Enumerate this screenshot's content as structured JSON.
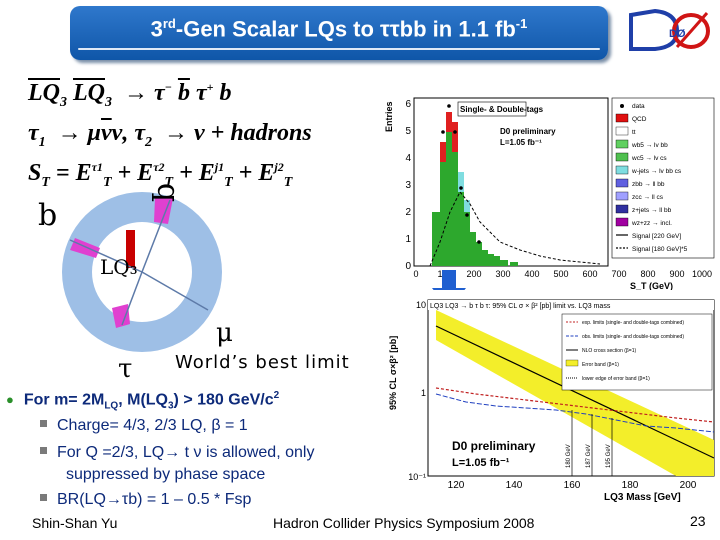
{
  "title": {
    "main": "3",
    "sup1": "rd",
    "mid": "-Gen Scalar LQs to ττbb in 1.1 fb",
    "sup2": "-1"
  },
  "logo": {
    "text": "DØ"
  },
  "equations": {
    "eq1": "LQ₃ LQ₃ → τ⁻ b τ⁺ b",
    "eq2": "τ₁ → μνν, τ₂ → ν + hadrons",
    "eq3": "S_T = E_T^τ1 + E_T^τ2 + E_T^j1 + E_T^j2"
  },
  "diagram": {
    "b": "b",
    "q": "q",
    "lq3": "LQ₃",
    "tau": "τ",
    "mu": "μ"
  },
  "world_best": "World’s best limit",
  "plot1": {
    "ylabel": "Entries",
    "xlabel": "S_T (GeV)",
    "box_title": "Single- & Double-tags",
    "prelim": "D0 preliminary",
    "lumi": "L=1.05 fb⁻¹",
    "x_ticks": [
      "0",
      "100",
      "200",
      "300",
      "400",
      "500",
      "600",
      "700",
      "800",
      "900",
      "1000"
    ],
    "y_ticks": [
      "0",
      "1",
      "2",
      "3",
      "4",
      "5",
      "6"
    ],
    "legend": [
      "data",
      "QCD",
      "tt",
      "wb5 → lv bb",
      "wc5 → lv cs",
      "w-jets → lv bb cs",
      "zbb → ll bb",
      "zcc → ll cs",
      "z+jets → ll bb",
      "wz+zz → incl.",
      "Signal [220 GeV]",
      "Signal [180 GeV]*5"
    ],
    "legend_colors": [
      "#000000",
      "#e01010",
      "#ffffff",
      "#60d060",
      "#50c050",
      "#7fdde0",
      "#6060e0",
      "#a0a0ff",
      "#3030a0",
      "#a000a0",
      "#000000",
      "#000000"
    ]
  },
  "plot2": {
    "title": "LQ3 LQ3 → b τ b τ: 95% CL σ × β² [pb] limit vs. LQ3 mass",
    "ylabel": "95% CL σ×β² [pb]",
    "xlabel": "LQ3 Mass [GeV]",
    "x_ticks": [
      "120",
      "140",
      "160",
      "180",
      "200"
    ],
    "y_ticks": [
      "10",
      "1",
      "10⁻¹"
    ],
    "prelim": "D0 preliminary",
    "lumi": "L=1.05 fb⁻¹",
    "vlines": [
      "180 GeV",
      "187 GeV",
      "195 GeV"
    ],
    "legend": [
      "exp. limits (single- and double-tags combined)",
      "obs. limits (single- and double-tags combined)",
      "NLO cross section (β=1)",
      "Error band (β=1)",
      "lower edge of error band (β=1)"
    ]
  },
  "bullets": {
    "main": "For m= 2M_LQ, M(LQ3) > 180 GeV/c2",
    "main_parts": {
      "a": "For m= 2M",
      "a_sub": "LQ",
      "b": ", M(LQ",
      "b_sub": "3",
      "c": ") > 180 GeV/c",
      "c_sup": "2"
    },
    "sub1": "Charge= 4/3, 2/3 LQ, β = 1",
    "sub2a": "For Q =2/3, LQ→ t ν is allowed, only",
    "sub2b": "suppressed by phase space",
    "sub3": "BR(LQ→τb) = 1 – 0.5 * Fsp"
  },
  "footer": {
    "author": "Shin-Shan Yu",
    "conference": "Hadron Collider Physics Symposium 2008",
    "page": "23"
  }
}
